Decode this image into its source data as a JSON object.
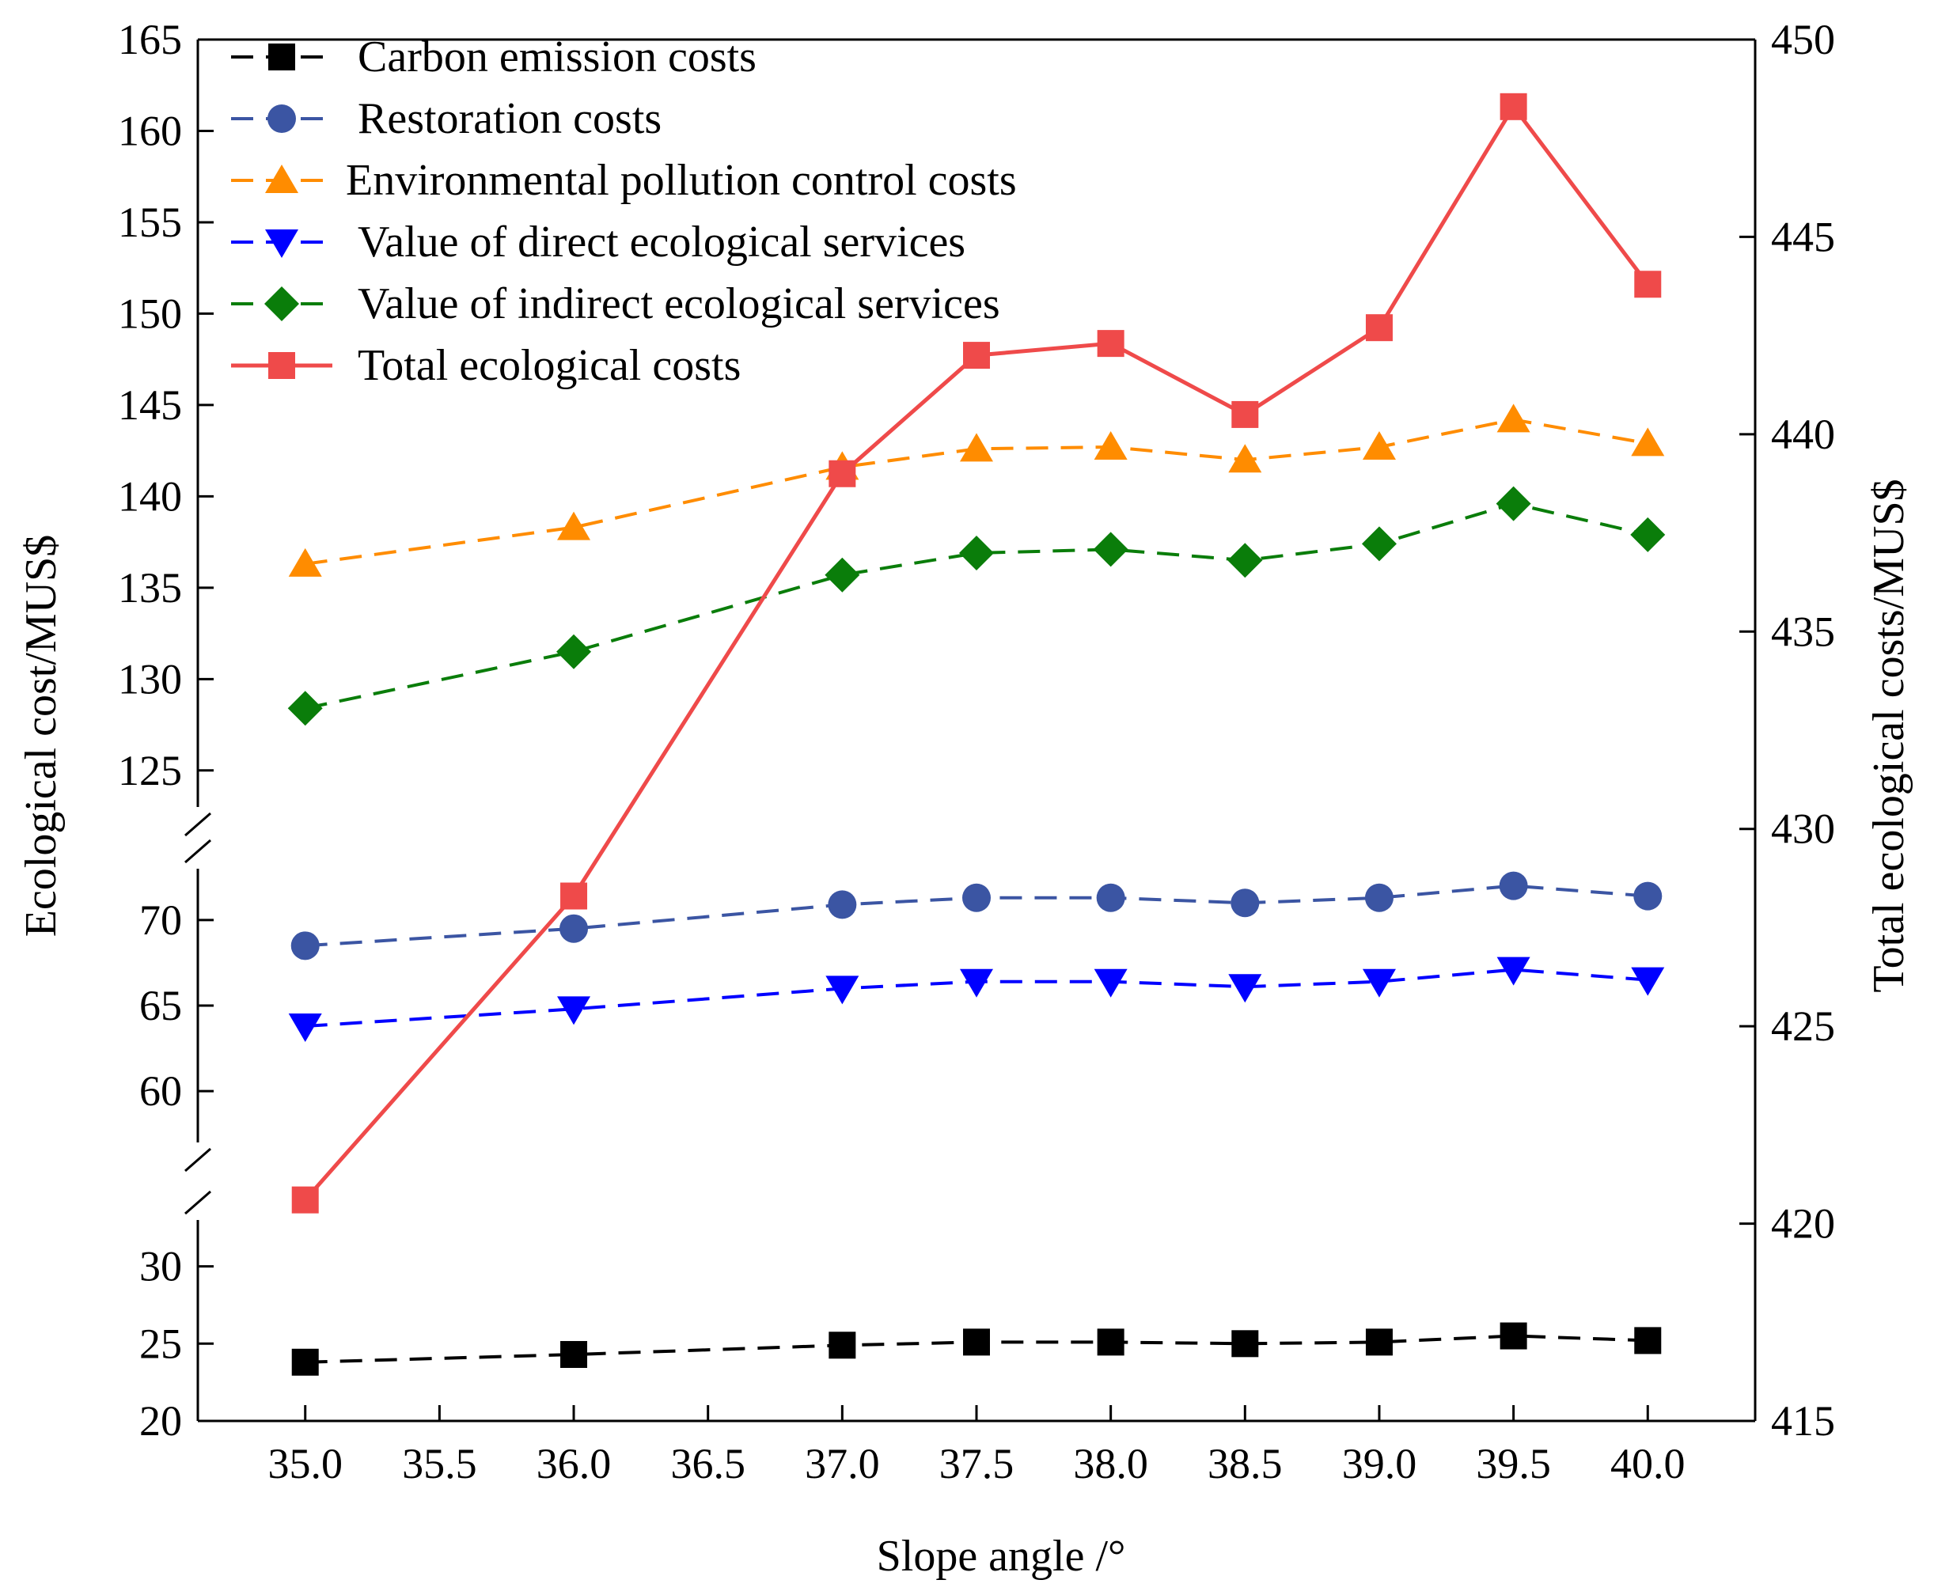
{
  "chart_data": {
    "type": "line",
    "xlabel": "Slope angle /°",
    "ylabel": "Ecological cost/MUS$",
    "y2label": "Total ecological costs/MUS$",
    "x": [
      35.0,
      36.0,
      37.0,
      37.5,
      38.0,
      38.5,
      39.0,
      39.5,
      40.0
    ],
    "xticks": [
      "35.0",
      "35.5",
      "36.0",
      "36.5",
      "37.0",
      "37.5",
      "38.0",
      "38.5",
      "39.0",
      "39.5",
      "40.0"
    ],
    "xtick_values": [
      35.0,
      35.5,
      36.0,
      36.5,
      37.0,
      37.5,
      38.0,
      38.5,
      39.0,
      39.5,
      40.0
    ],
    "xlim": [
      34.6,
      40.4
    ],
    "ylim": [
      20,
      165
    ],
    "y_axis_breaks": [
      [
        33,
        57
      ],
      [
        73,
        123
      ]
    ],
    "yticks": [
      "20",
      "25",
      "30",
      "60",
      "65",
      "70",
      "125",
      "130",
      "135",
      "140",
      "145",
      "150",
      "155",
      "160",
      "165"
    ],
    "ytick_values": [
      20,
      25,
      30,
      60,
      65,
      70,
      125,
      130,
      135,
      140,
      145,
      150,
      155,
      160,
      165
    ],
    "y2lim": [
      415,
      450
    ],
    "y2ticks": [
      "415",
      "420",
      "425",
      "430",
      "435",
      "440",
      "445",
      "450"
    ],
    "y2tick_values": [
      415,
      420,
      425,
      430,
      435,
      440,
      445,
      450
    ],
    "legend_position": "top-left",
    "series": [
      {
        "name": "Carbon emission costs",
        "axis": "left",
        "color": "#000000",
        "marker": "square",
        "dashed": true,
        "values": [
          23.8,
          24.3,
          24.9,
          25.1,
          25.1,
          25.0,
          25.1,
          25.5,
          25.2
        ]
      },
      {
        "name": "Restoration costs",
        "axis": "left",
        "color": "#3b55a3",
        "marker": "circle",
        "dashed": true,
        "values": [
          68.5,
          69.5,
          70.9,
          71.3,
          71.3,
          71.0,
          71.3,
          72.0,
          71.4
        ]
      },
      {
        "name": "Environmental pollution control costs",
        "axis": "left",
        "color": "#ff8c00",
        "marker": "triangle-up",
        "dashed": true,
        "values": [
          136.3,
          138.3,
          141.6,
          142.6,
          142.7,
          142.0,
          142.7,
          144.2,
          142.9
        ]
      },
      {
        "name": "Value of direct ecological services",
        "axis": "left",
        "color": "#0000ff",
        "marker": "triangle-down",
        "dashed": true,
        "values": [
          63.8,
          64.8,
          66.0,
          66.4,
          66.4,
          66.1,
          66.4,
          67.1,
          66.5
        ]
      },
      {
        "name": "Value of indirect ecological services",
        "axis": "left",
        "color": "#0a7d0a",
        "marker": "diamond",
        "dashed": true,
        "values": [
          128.4,
          131.5,
          135.7,
          136.9,
          137.1,
          136.5,
          137.4,
          139.6,
          137.9
        ]
      },
      {
        "name": "Total ecological costs",
        "axis": "right",
        "color": "#ef4a4a",
        "marker": "square",
        "dashed": false,
        "values": [
          420.6,
          428.3,
          439.0,
          442.0,
          442.3,
          440.5,
          442.7,
          448.3,
          443.8
        ]
      }
    ]
  }
}
